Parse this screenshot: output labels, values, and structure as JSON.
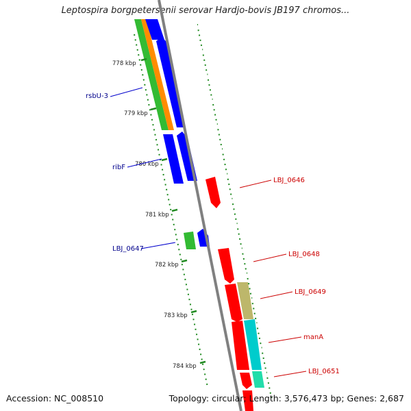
{
  "title": "Leptospira borgpetersenii serovar Hardjo-bovis JB197 chromos...",
  "footer": {
    "accession": "Accession: NC_008510",
    "summary": "Topology: circular; Length: 3,576,473 bp; Genes: 2,687"
  },
  "colors": {
    "forward_cds": "#0000ff",
    "reverse_cds": "#ff0000",
    "forward_label": "#00008b",
    "reverse_label": "#cc0000",
    "green_feature": "#33bb33",
    "orange_feature": "#ff8c00",
    "khaki_feature": "#bdb76b",
    "cyan_feature": "#00cccc",
    "teal_feature": "#22ddaa",
    "backbone": "#808080",
    "ticks": "#228b22"
  },
  "tick_labels": [
    "778 kbp",
    "779 kbp",
    "780 kbp",
    "781 kbp",
    "782 kbp",
    "783 kbp",
    "784 kbp"
  ],
  "left_labels": [
    "rsbU-3",
    "ribF",
    "LBJ_0647"
  ],
  "right_labels": [
    "LBJ_0646",
    "LBJ_0648",
    "LBJ_0649",
    "manA",
    "LBJ_0651"
  ]
}
